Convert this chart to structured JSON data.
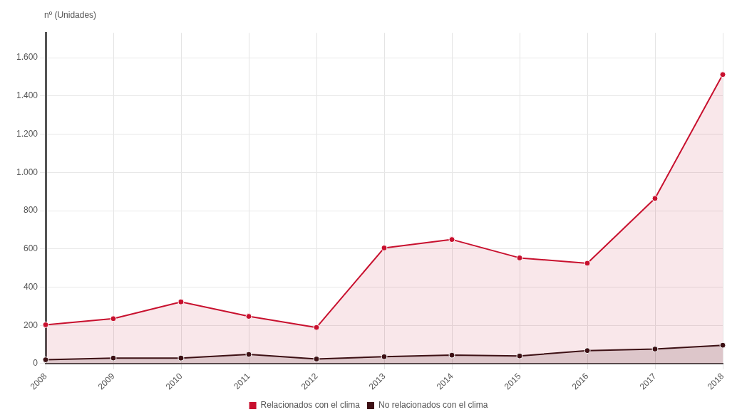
{
  "chart_data": {
    "type": "area",
    "ylabel": "nº (Unidades)",
    "categories": [
      "2008",
      "2009",
      "2010",
      "2011",
      "2012",
      "2013",
      "2014",
      "2015",
      "2016",
      "2017",
      "2018"
    ],
    "series": [
      {
        "name": "Relacionados con el clima",
        "color": "#c8102e",
        "values": [
          203,
          235,
          323,
          247,
          189,
          605,
          649,
          553,
          525,
          864,
          1512
        ]
      },
      {
        "name": "No relacionados con el clima",
        "color": "#3d1014",
        "values": [
          20,
          29,
          29,
          48,
          24,
          36,
          44,
          40,
          68,
          76,
          96
        ]
      }
    ],
    "ylim": [
      0,
      1730
    ],
    "yticks": [
      0,
      {
        "value": 200,
        "label": "200"
      },
      {
        "value": 400,
        "label": "400"
      },
      {
        "value": 600,
        "label": "600"
      },
      {
        "value": 800,
        "label": "800"
      },
      {
        "value": 1000,
        "label": "1.000"
      },
      {
        "value": 1200,
        "label": "1.200"
      },
      {
        "value": 1400,
        "label": "1.400"
      },
      {
        "value": 1600,
        "label": "1.600"
      }
    ],
    "grid": true,
    "legend": "bottom",
    "marker": "circle",
    "line_style": "solid"
  }
}
